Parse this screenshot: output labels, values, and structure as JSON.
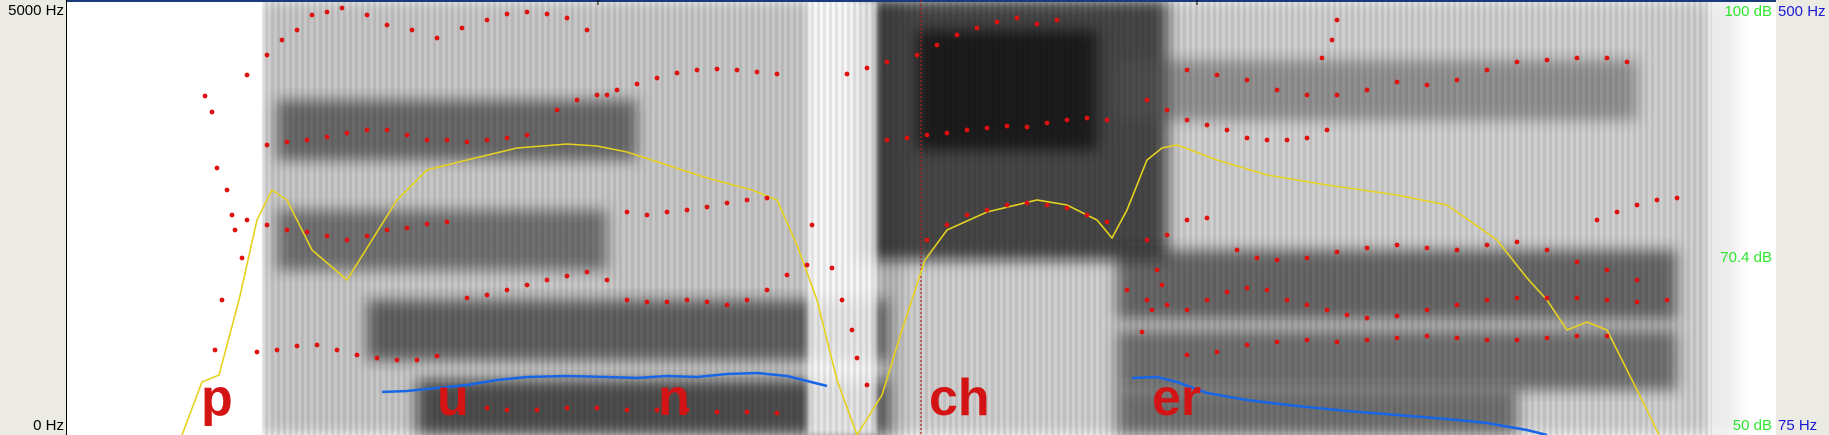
{
  "frequency_axis": {
    "top_label": "5000 Hz",
    "bottom_label": "0 Hz"
  },
  "intensity_axis": {
    "top_label": "100 dB",
    "mid_label": "70.4 dB",
    "bottom_label": "50 dB"
  },
  "pitch_axis": {
    "top_label": "500 Hz",
    "bottom_label": "75 Hz"
  },
  "segments": [
    "p",
    "u",
    "n",
    "ch",
    "er"
  ],
  "colors": {
    "formant": "#e01010",
    "intensity_curve": "#e6d21e",
    "pitch_curve": "#1866e6",
    "segment_text": "#d41414",
    "db_text": "#2ee62e",
    "pitch_text": "#1a1ad6"
  }
}
